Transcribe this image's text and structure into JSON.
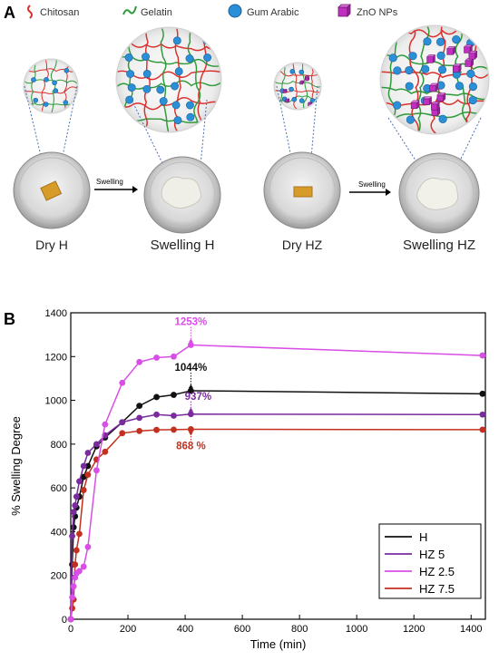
{
  "panel_a": {
    "label": "A",
    "legend": [
      {
        "name": "Chitosan",
        "icon": "chitosan-strand-icon",
        "color": "#d9302c"
      },
      {
        "name": "Gelatin",
        "icon": "gelatin-strand-icon",
        "color": "#2e9a3a"
      },
      {
        "name": "Gum Arabic",
        "icon": "gum-arabic-sphere-icon",
        "color": "#2a8fd6"
      },
      {
        "name": "ZnO NPs",
        "icon": "zno-cube-icon",
        "color": "#c12fc1"
      }
    ],
    "arrow_label": "Swelling",
    "samples": [
      "Dry H",
      "Swelling H",
      "Dry HZ",
      "Swelling HZ"
    ]
  },
  "panel_b": {
    "label": "B"
  },
  "chart_data": {
    "type": "line",
    "xlabel": "Time (min)",
    "ylabel": "% Swelling Degree",
    "xlim": [
      0,
      1450
    ],
    "ylim": [
      0,
      1400
    ],
    "xticks": [
      0,
      200,
      400,
      600,
      800,
      1000,
      1200,
      1400
    ],
    "yticks": [
      0,
      200,
      400,
      600,
      800,
      1000,
      1200,
      1400
    ],
    "grid": false,
    "legend_position": "bottom-right",
    "series": [
      {
        "name": "H",
        "color": "#111111",
        "x": [
          0,
          5,
          10,
          15,
          20,
          30,
          45,
          60,
          90,
          120,
          180,
          240,
          300,
          360,
          420,
          1440
        ],
        "y": [
          0,
          250,
          420,
          470,
          510,
          560,
          650,
          700,
          790,
          830,
          900,
          975,
          1015,
          1025,
          1044,
          1030
        ]
      },
      {
        "name": "HZ 5",
        "color": "#7a2b9e",
        "x": [
          0,
          5,
          10,
          15,
          20,
          30,
          45,
          60,
          90,
          120,
          180,
          240,
          300,
          360,
          420,
          1440
        ],
        "y": [
          0,
          380,
          490,
          520,
          560,
          630,
          700,
          760,
          800,
          840,
          900,
          920,
          935,
          930,
          937,
          935
        ]
      },
      {
        "name": "HZ 2.5",
        "color": "#d94ee6",
        "x": [
          0,
          5,
          10,
          15,
          20,
          30,
          45,
          60,
          90,
          120,
          180,
          240,
          300,
          360,
          420,
          1440
        ],
        "y": [
          0,
          100,
          150,
          190,
          210,
          220,
          240,
          330,
          680,
          890,
          1080,
          1175,
          1195,
          1200,
          1253,
          1205
        ]
      },
      {
        "name": "HZ 7.5",
        "color": "#c4301f",
        "x": [
          0,
          5,
          10,
          15,
          20,
          30,
          45,
          60,
          90,
          120,
          180,
          240,
          300,
          360,
          420,
          1440
        ],
        "y": [
          0,
          50,
          90,
          250,
          315,
          390,
          590,
          660,
          730,
          765,
          850,
          860,
          865,
          866,
          868,
          866
        ]
      }
    ],
    "annotations": [
      {
        "text": "1253%",
        "x": 420,
        "y": 1253,
        "color": "#d94ee6"
      },
      {
        "text": "1044%",
        "x": 420,
        "y": 1044,
        "color": "#111111"
      },
      {
        "text": "937%",
        "x": 420,
        "y": 937,
        "color": "#7a2b9e"
      },
      {
        "text": "868 %",
        "x": 420,
        "y": 868,
        "color": "#c4301f"
      }
    ]
  }
}
